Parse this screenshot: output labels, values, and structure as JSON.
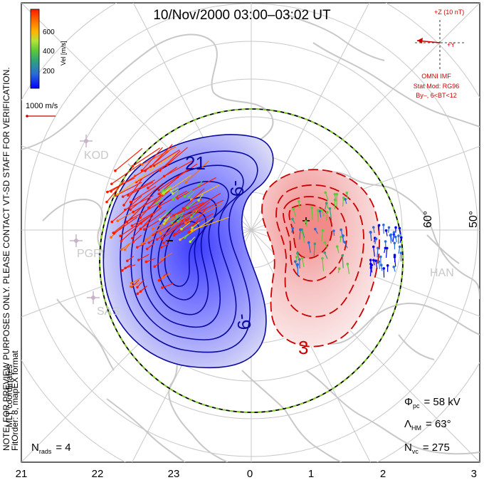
{
  "title": "10/Nov/2000 03:00–03:02 UT",
  "coordinates_label": "MLT coordinates",
  "note_line1": "NOTE: FOR PREVIEW PURPOSES ONLY. PLEASE CONTACT VT-SD STAFF FOR VERIFICATION.",
  "note_line2": "FitOrder: 8, mapEX format",
  "colorbar": {
    "label": "Vel [m/s]",
    "ticks": [
      "200",
      "400",
      "600"
    ],
    "colors": [
      "#0000ff",
      "#2a6cd6",
      "#2fa37a",
      "#5ec93a",
      "#b6e23a",
      "#ffb400",
      "#ff6a00",
      "#ff1a00"
    ]
  },
  "vector_scale": {
    "label": "1000 m/s"
  },
  "imf": {
    "z_label": "+Z (10 nT)",
    "y_label": "+Y",
    "source": "OMNI IMF",
    "model_line1": "Stat Mod: RG96",
    "model_line2": "By–, 6<BT<12"
  },
  "stations": [
    "KOD",
    "PGR",
    "SAS",
    "HAN"
  ],
  "latitude_labels": [
    "60°",
    "50°"
  ],
  "contour_labels": [
    "21",
    "-9",
    "-9",
    "3"
  ],
  "stats": {
    "phi_symbol": "Φ",
    "phi_sub": "pc",
    "phi_value": "= 58 kV",
    "lambda_symbol": "Λ",
    "lambda_sub": "HM",
    "lambda_value": "= 63°",
    "nvc_symbol": "N",
    "nvc_sub": "vc",
    "nvc_value": "= 275",
    "nrads_symbol": "N",
    "nrads_sub": "rads",
    "nrads_value": "= 4"
  },
  "x_axis": {
    "ticks": [
      "21",
      "22",
      "23",
      "0",
      "1",
      "2",
      "3"
    ]
  },
  "colors": {
    "negative_cell": "#1a1aff",
    "positive_cell": "#ff4040",
    "annotation_red": "#cc0000",
    "grid": "#c8c8c8",
    "land": "#c8c8c8"
  }
}
